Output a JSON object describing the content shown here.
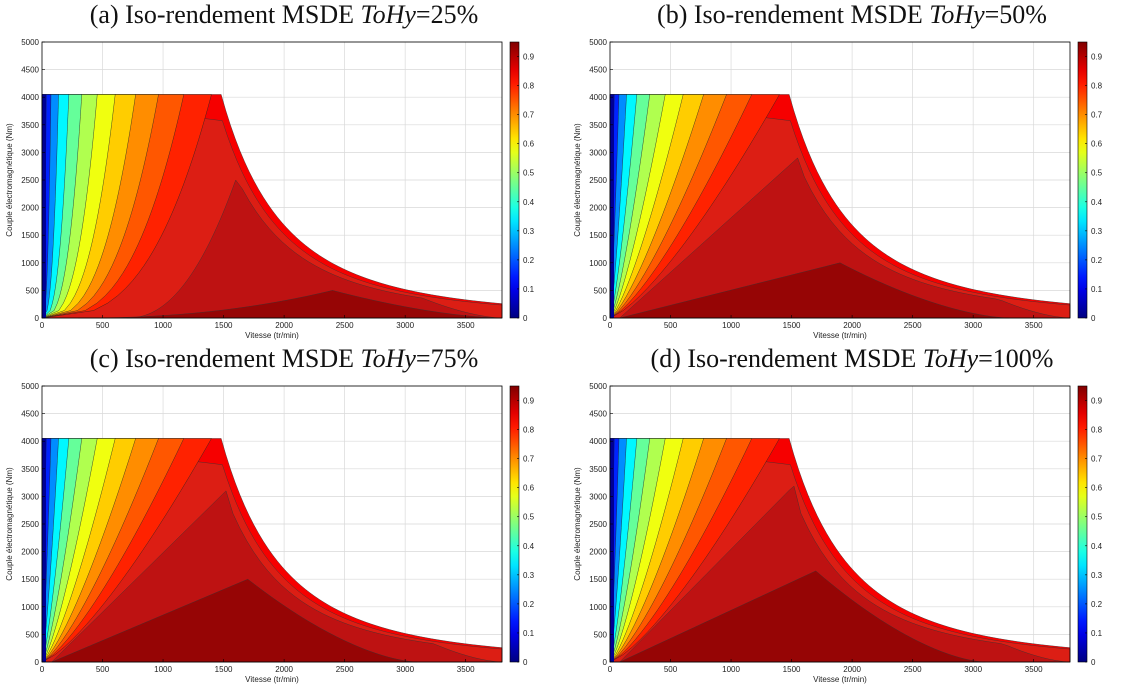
{
  "chart_data": [
    {
      "type": "heatmap",
      "title_prefix": "(a) Iso-rendement MSDE ",
      "title_var": "ToHy",
      "title_suffix": "=25%",
      "xlabel": "Vitesse (tr/min)",
      "ylabel": "Couple électromagnétique (Nm)",
      "xlim": [
        0,
        3800
      ],
      "ylim": [
        0,
        5000
      ],
      "xticks": [
        0,
        500,
        1000,
        1500,
        2000,
        2500,
        3000,
        3500
      ],
      "yticks": [
        0,
        500,
        1000,
        1500,
        2000,
        2500,
        3000,
        3500,
        4000,
        4500,
        5000
      ],
      "colorbar_ticks": [
        0,
        0.1,
        0.2,
        0.3,
        0.4,
        0.5,
        0.6,
        0.7,
        0.8,
        0.9
      ],
      "clim": [
        0,
        0.95
      ],
      "grid": true,
      "envelope": {
        "max_torque": 4050,
        "corner_speed": 1480,
        "end_speed": 3800,
        "end_torque": 260
      },
      "efficiency_regions": [
        {
          "level": 0.85,
          "peak_speed": 1600,
          "peak_torque": 2500
        },
        {
          "level": 0.9,
          "peak_speed": 2400,
          "peak_torque": 500
        }
      ]
    },
    {
      "type": "heatmap",
      "title_prefix": "(b) Iso-rendement MSDE ",
      "title_var": "ToHy",
      "title_suffix": "=50%",
      "xlabel": "Vitesse (tr/min)",
      "ylabel": "Couple électromagnétique (Nm)",
      "xlim": [
        0,
        3800
      ],
      "ylim": [
        0,
        5000
      ],
      "xticks": [
        0,
        500,
        1000,
        1500,
        2000,
        2500,
        3000,
        3500
      ],
      "yticks": [
        0,
        500,
        1000,
        1500,
        2000,
        2500,
        3000,
        3500,
        4000,
        4500,
        5000
      ],
      "colorbar_ticks": [
        0,
        0.1,
        0.2,
        0.3,
        0.4,
        0.5,
        0.6,
        0.7,
        0.8,
        0.9
      ],
      "clim": [
        0,
        0.95
      ],
      "grid": true,
      "envelope": {
        "max_torque": 4050,
        "corner_speed": 1480,
        "end_speed": 3800,
        "end_torque": 260
      },
      "efficiency_regions": [
        {
          "level": 0.85,
          "peak_speed": 1550,
          "peak_torque": 2900
        },
        {
          "level": 0.9,
          "peak_speed": 1900,
          "peak_torque": 1000
        }
      ]
    },
    {
      "type": "heatmap",
      "title_prefix": "(c) Iso-rendement MSDE ",
      "title_var": "ToHy",
      "title_suffix": "=75%",
      "xlabel": "Vitesse (tr/min)",
      "ylabel": "Couple électromagnétique (Nm)",
      "xlim": [
        0,
        3800
      ],
      "ylim": [
        0,
        5000
      ],
      "xticks": [
        0,
        500,
        1000,
        1500,
        2000,
        2500,
        3000,
        3500
      ],
      "yticks": [
        0,
        500,
        1000,
        1500,
        2000,
        2500,
        3000,
        3500,
        4000,
        4500,
        5000
      ],
      "colorbar_ticks": [
        0,
        0.1,
        0.2,
        0.3,
        0.4,
        0.5,
        0.6,
        0.7,
        0.8,
        0.9
      ],
      "clim": [
        0,
        0.95
      ],
      "grid": true,
      "envelope": {
        "max_torque": 4050,
        "corner_speed": 1480,
        "end_speed": 3800,
        "end_torque": 260
      },
      "efficiency_regions": [
        {
          "level": 0.85,
          "peak_speed": 1520,
          "peak_torque": 3100
        },
        {
          "level": 0.9,
          "peak_speed": 1700,
          "peak_torque": 1500
        }
      ]
    },
    {
      "type": "heatmap",
      "title_prefix": "(d) Iso-rendement MSDE ",
      "title_var": "ToHy",
      "title_suffix": "=100%",
      "xlabel": "Vitesse (tr/min)",
      "ylabel": "Couple électromagnétique (Nm)",
      "xlim": [
        0,
        3800
      ],
      "ylim": [
        0,
        5000
      ],
      "xticks": [
        0,
        500,
        1000,
        1500,
        2000,
        2500,
        3000,
        3500
      ],
      "yticks": [
        0,
        500,
        1000,
        1500,
        2000,
        2500,
        3000,
        3500,
        4000,
        4500,
        5000
      ],
      "colorbar_ticks": [
        0,
        0.1,
        0.2,
        0.3,
        0.4,
        0.5,
        0.6,
        0.7,
        0.8,
        0.9
      ],
      "clim": [
        0,
        0.95
      ],
      "grid": true,
      "envelope": {
        "max_torque": 4050,
        "corner_speed": 1480,
        "end_speed": 3800,
        "end_torque": 260
      },
      "efficiency_regions": [
        {
          "level": 0.85,
          "peak_speed": 1520,
          "peak_torque": 3200
        },
        {
          "level": 0.9,
          "peak_speed": 1700,
          "peak_torque": 1650
        }
      ]
    }
  ]
}
